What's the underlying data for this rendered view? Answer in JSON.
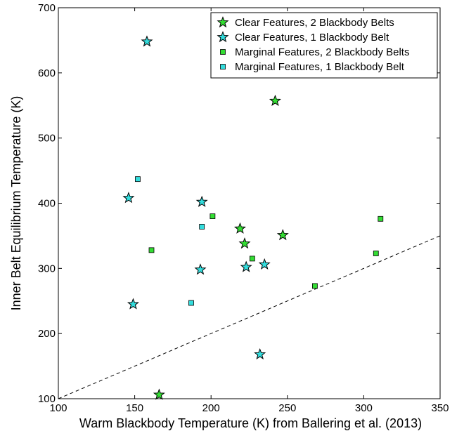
{
  "chart_data": {
    "type": "scatter",
    "title": "",
    "xlabel": "Warm Blackbody Temperature (K) from Ballering et al. (2013)",
    "ylabel": "Inner Belt Equilibrium Temperature (K)",
    "xlim": [
      100,
      350
    ],
    "ylim": [
      100,
      700
    ],
    "xticks": [
      100,
      150,
      200,
      250,
      300,
      350
    ],
    "yticks": [
      100,
      200,
      300,
      400,
      500,
      600,
      700
    ],
    "grid": false,
    "legend_position": "top-right",
    "reference_line": {
      "style": "dashed",
      "points": [
        [
          100,
          100
        ],
        [
          350,
          350
        ]
      ]
    },
    "series": [
      {
        "name": "Clear Features, 2 Blackbody Belts",
        "marker": "star",
        "color": "#33dd33",
        "points": [
          [
            242,
            557
          ],
          [
            219,
            361
          ],
          [
            222,
            338
          ],
          [
            247,
            351
          ],
          [
            166,
            106
          ]
        ]
      },
      {
        "name": "Clear Features, 1 Blackbody Belt",
        "marker": "star",
        "color": "#33dddd",
        "points": [
          [
            158,
            648
          ],
          [
            146,
            408
          ],
          [
            194,
            402
          ],
          [
            193,
            298
          ],
          [
            223,
            302
          ],
          [
            235,
            306
          ],
          [
            149,
            245
          ],
          [
            232,
            168
          ]
        ]
      },
      {
        "name": "Marginal Features, 2 Blackbody Belts",
        "marker": "square",
        "color": "#33dd33",
        "points": [
          [
            201,
            380
          ],
          [
            161,
            328
          ],
          [
            227,
            315
          ],
          [
            268,
            273
          ],
          [
            311,
            376
          ],
          [
            308,
            323
          ]
        ]
      },
      {
        "name": "Marginal Features, 1 Blackbody Belt",
        "marker": "square",
        "color": "#33dddd",
        "points": [
          [
            152,
            437
          ],
          [
            194,
            364
          ],
          [
            187,
            247
          ]
        ]
      }
    ]
  }
}
